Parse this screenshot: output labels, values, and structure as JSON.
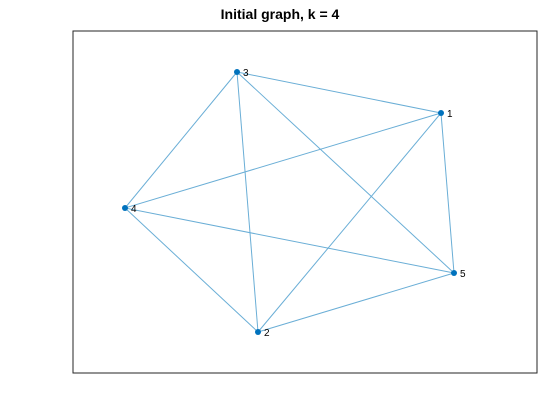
{
  "figure": {
    "title": "Initial graph, k = 4",
    "colors": {
      "edge": "#6aaed6",
      "node": "#0072bd",
      "axes": "#262626"
    }
  },
  "graph": {
    "nodes": [
      {
        "id": "1",
        "label": "1"
      },
      {
        "id": "2",
        "label": "2"
      },
      {
        "id": "3",
        "label": "3"
      },
      {
        "id": "4",
        "label": "4"
      },
      {
        "id": "5",
        "label": "5"
      }
    ],
    "edges": [
      [
        "3",
        "1"
      ],
      [
        "3",
        "4"
      ],
      [
        "3",
        "2"
      ],
      [
        "3",
        "5"
      ],
      [
        "1",
        "4"
      ],
      [
        "1",
        "2"
      ],
      [
        "1",
        "5"
      ],
      [
        "4",
        "5"
      ],
      [
        "4",
        "2"
      ],
      [
        "2",
        "5"
      ]
    ]
  }
}
